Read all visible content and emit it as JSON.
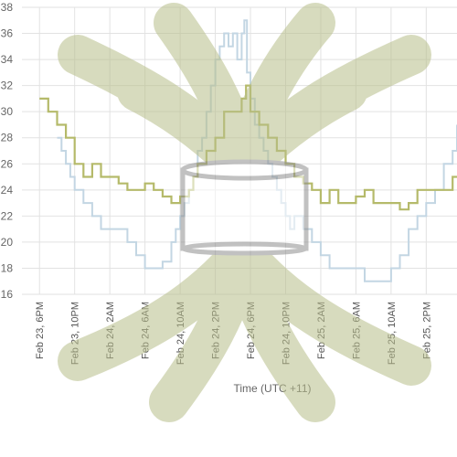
{
  "chart_data": {
    "type": "line",
    "xlabel": "Time (UTC +11)",
    "ylabel": "",
    "ylim": [
      16,
      38
    ],
    "yticks": [
      16,
      18,
      20,
      22,
      24,
      26,
      28,
      30,
      32,
      34,
      36,
      38
    ],
    "xticks": [
      "Feb 23, 6PM",
      "Feb 23, 10PM",
      "Feb 24, 2AM",
      "Feb 24, 6AM",
      "Feb 24, 10AM",
      "Feb 24, 2PM",
      "Feb 24, 6PM",
      "Feb 24, 10PM",
      "Feb 25, 2AM",
      "Feb 25, 6AM",
      "Feb 25, 10AM",
      "Feb 25, 2PM"
    ],
    "x_hours_range": [
      -2,
      47.5
    ],
    "grid": true,
    "series": [
      {
        "color": "#c3d6e3",
        "points": [
          [
            2,
            28
          ],
          [
            2.5,
            27
          ],
          [
            3,
            26
          ],
          [
            3.5,
            25
          ],
          [
            4,
            24
          ],
          [
            5,
            23
          ],
          [
            6,
            22
          ],
          [
            7,
            21
          ],
          [
            9,
            21
          ],
          [
            10,
            20
          ],
          [
            11,
            19
          ],
          [
            12,
            18
          ],
          [
            13,
            18
          ],
          [
            14,
            18.5
          ],
          [
            15,
            20
          ],
          [
            15.5,
            21
          ],
          [
            16,
            22
          ],
          [
            16.5,
            23
          ],
          [
            17,
            24
          ],
          [
            17.5,
            25
          ],
          [
            18,
            27
          ],
          [
            18.5,
            28
          ],
          [
            19,
            30
          ],
          [
            19.5,
            32
          ],
          [
            20,
            34
          ],
          [
            20.5,
            35
          ],
          [
            21,
            36
          ],
          [
            21.5,
            35
          ],
          [
            22,
            36
          ],
          [
            22.5,
            34
          ],
          [
            23,
            36
          ],
          [
            23.3,
            37
          ],
          [
            23.6,
            33
          ],
          [
            24,
            31
          ],
          [
            24.5,
            29
          ],
          [
            25,
            28
          ],
          [
            25.5,
            27
          ],
          [
            26,
            26
          ],
          [
            26.5,
            25
          ],
          [
            27,
            24
          ],
          [
            27.5,
            23
          ],
          [
            28,
            22
          ],
          [
            28.5,
            21
          ],
          [
            29,
            22
          ],
          [
            30,
            21
          ],
          [
            31,
            20
          ],
          [
            32,
            19
          ],
          [
            33,
            18
          ],
          [
            35,
            18
          ],
          [
            36,
            18
          ],
          [
            37,
            17
          ],
          [
            39,
            17
          ],
          [
            40,
            18
          ],
          [
            41,
            19
          ],
          [
            42,
            21
          ],
          [
            43,
            22
          ],
          [
            44,
            23
          ],
          [
            45,
            24
          ],
          [
            46,
            26
          ],
          [
            47,
            27
          ],
          [
            47.5,
            29
          ]
        ]
      },
      {
        "color": "#b5ba6a",
        "points": [
          [
            0,
            31
          ],
          [
            1,
            30
          ],
          [
            2,
            29
          ],
          [
            3,
            28
          ],
          [
            4,
            26
          ],
          [
            5,
            25
          ],
          [
            6,
            26
          ],
          [
            7,
            25
          ],
          [
            8,
            25
          ],
          [
            9,
            24.5
          ],
          [
            10,
            24
          ],
          [
            11,
            24
          ],
          [
            12,
            24.5
          ],
          [
            13,
            24
          ],
          [
            14,
            23.5
          ],
          [
            15,
            23
          ],
          [
            16,
            23.5
          ],
          [
            17,
            24
          ],
          [
            17.5,
            25
          ],
          [
            18,
            26
          ],
          [
            19,
            27
          ],
          [
            20,
            28
          ],
          [
            21,
            30
          ],
          [
            22,
            30
          ],
          [
            23,
            31
          ],
          [
            23.5,
            32
          ],
          [
            24,
            30
          ],
          [
            25,
            29
          ],
          [
            26,
            28
          ],
          [
            27,
            27
          ],
          [
            28,
            26
          ],
          [
            29,
            25
          ],
          [
            30,
            24.5
          ],
          [
            31,
            24
          ],
          [
            32,
            23
          ],
          [
            33,
            24
          ],
          [
            34,
            23
          ],
          [
            35,
            23
          ],
          [
            36,
            23.5
          ],
          [
            37,
            24
          ],
          [
            38,
            23
          ],
          [
            39,
            23
          ],
          [
            40,
            23
          ],
          [
            41,
            22.5
          ],
          [
            42,
            23
          ],
          [
            43,
            24
          ],
          [
            44,
            24
          ],
          [
            45,
            24
          ],
          [
            46,
            24
          ],
          [
            47,
            25
          ],
          [
            47.5,
            25
          ]
        ]
      }
    ]
  }
}
